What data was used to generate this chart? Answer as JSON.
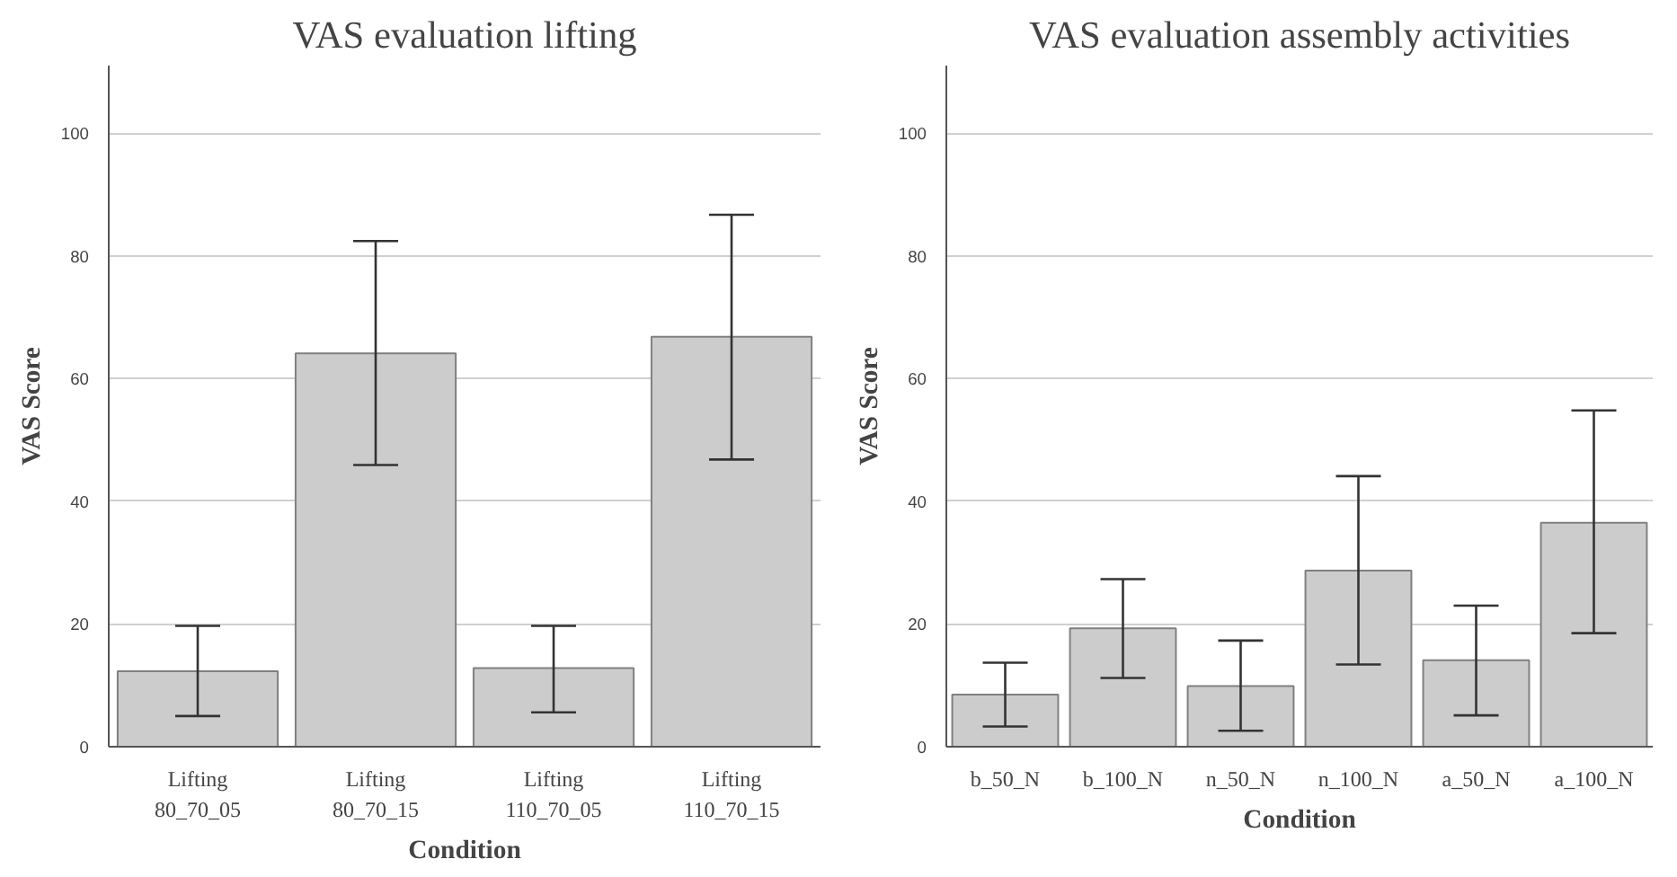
{
  "chart_data": [
    {
      "type": "bar",
      "title": "VAS evaluation lifting",
      "xlabel": "Condition",
      "ylabel": "VAS Score",
      "categories": [
        "Lifting\n80_70_05",
        "Lifting\n80_70_15",
        "Lifting\n110_70_05",
        "Lifting\n110_70_15"
      ],
      "values": [
        12.3,
        64.1,
        12.8,
        66.8
      ],
      "errors": [
        [
          5.0,
          19.7
        ],
        [
          45.9,
          82.4
        ],
        [
          5.6,
          19.7
        ],
        [
          46.8,
          86.7
        ]
      ],
      "color": "#cccccc",
      "ylim": [
        0,
        111
      ],
      "yticks": [
        0,
        20,
        40,
        60,
        80,
        100
      ],
      "grid": "y"
    },
    {
      "type": "bar",
      "title": "VAS evaluation assembly activities",
      "xlabel": "Condition",
      "ylabel": "VAS Score",
      "categories": [
        "b_50_N",
        "b_100_N",
        "n_50_N",
        "n_100_N",
        "a_50_N",
        "a_100_N"
      ],
      "values": [
        8.5,
        19.3,
        9.9,
        28.7,
        14.1,
        36.5
      ],
      "errors": [
        [
          3.3,
          13.7
        ],
        [
          11.2,
          27.3
        ],
        [
          2.6,
          17.3
        ],
        [
          13.4,
          44.1
        ],
        [
          5.1,
          23.0
        ],
        [
          18.5,
          54.8
        ]
      ],
      "color": "#cccccc",
      "ylim": [
        0,
        111
      ],
      "yticks": [
        0,
        20,
        40,
        60,
        80,
        100
      ],
      "grid": "y"
    }
  ]
}
